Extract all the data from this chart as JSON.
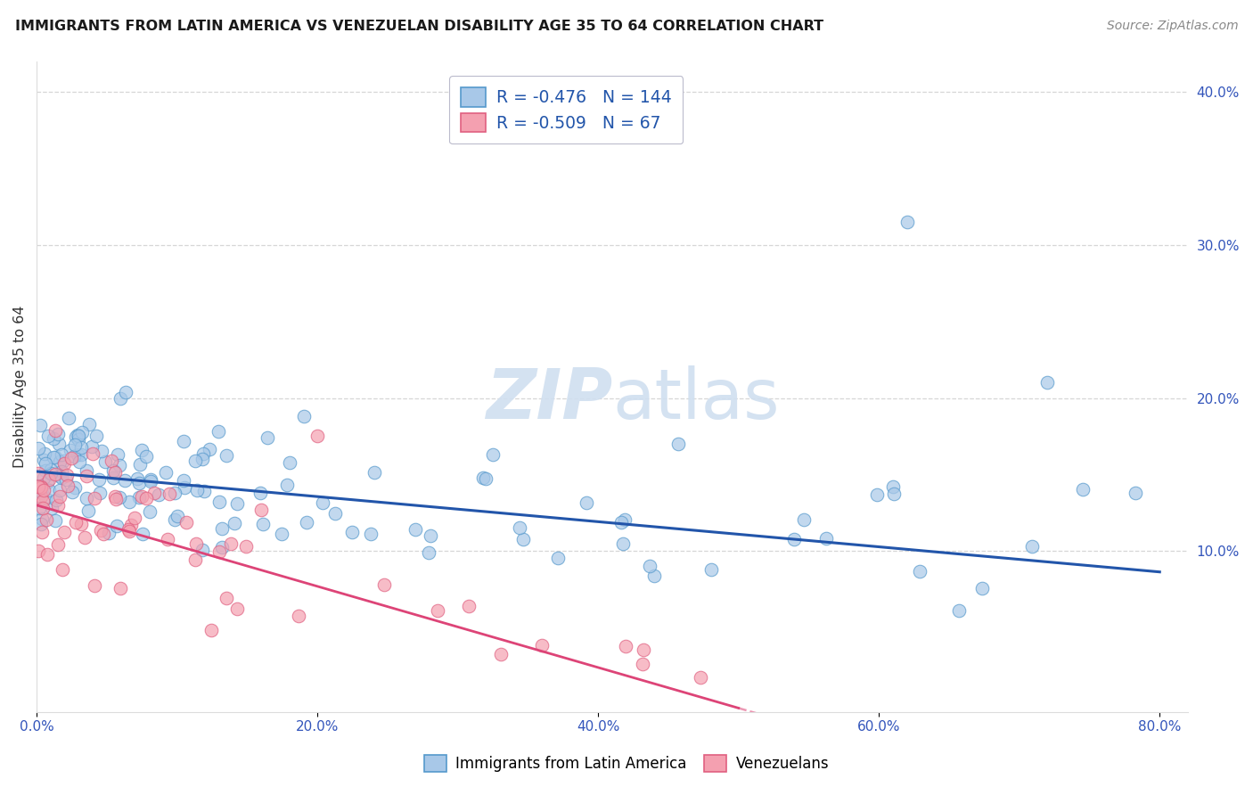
{
  "title": "IMMIGRANTS FROM LATIN AMERICA VS VENEZUELAN DISABILITY AGE 35 TO 64 CORRELATION CHART",
  "source": "Source: ZipAtlas.com",
  "ylabel": "Disability Age 35 to 64",
  "xlim": [
    0.0,
    0.82
  ],
  "ylim": [
    -0.005,
    0.42
  ],
  "blue_R": -0.476,
  "blue_N": 144,
  "pink_R": -0.509,
  "pink_N": 67,
  "blue_color": "#a8c8e8",
  "pink_color": "#f4a0b0",
  "blue_edge_color": "#5599cc",
  "pink_edge_color": "#e06080",
  "blue_line_color": "#2255aa",
  "pink_line_color": "#dd4477",
  "background_color": "#ffffff",
  "grid_color": "#cccccc",
  "axis_color": "#3355bb",
  "watermark_color": "#d0dff0",
  "ytick_positions": [
    0.1,
    0.2,
    0.3,
    0.4
  ],
  "ytick_labels": [
    "10.0%",
    "20.0%",
    "30.0%",
    "40.0%"
  ],
  "xtick_positions": [
    0.0,
    0.2,
    0.4,
    0.6,
    0.8
  ],
  "xtick_labels": [
    "0.0%",
    "20.0%",
    "40.0%",
    "60.0%",
    "80.0%"
  ]
}
